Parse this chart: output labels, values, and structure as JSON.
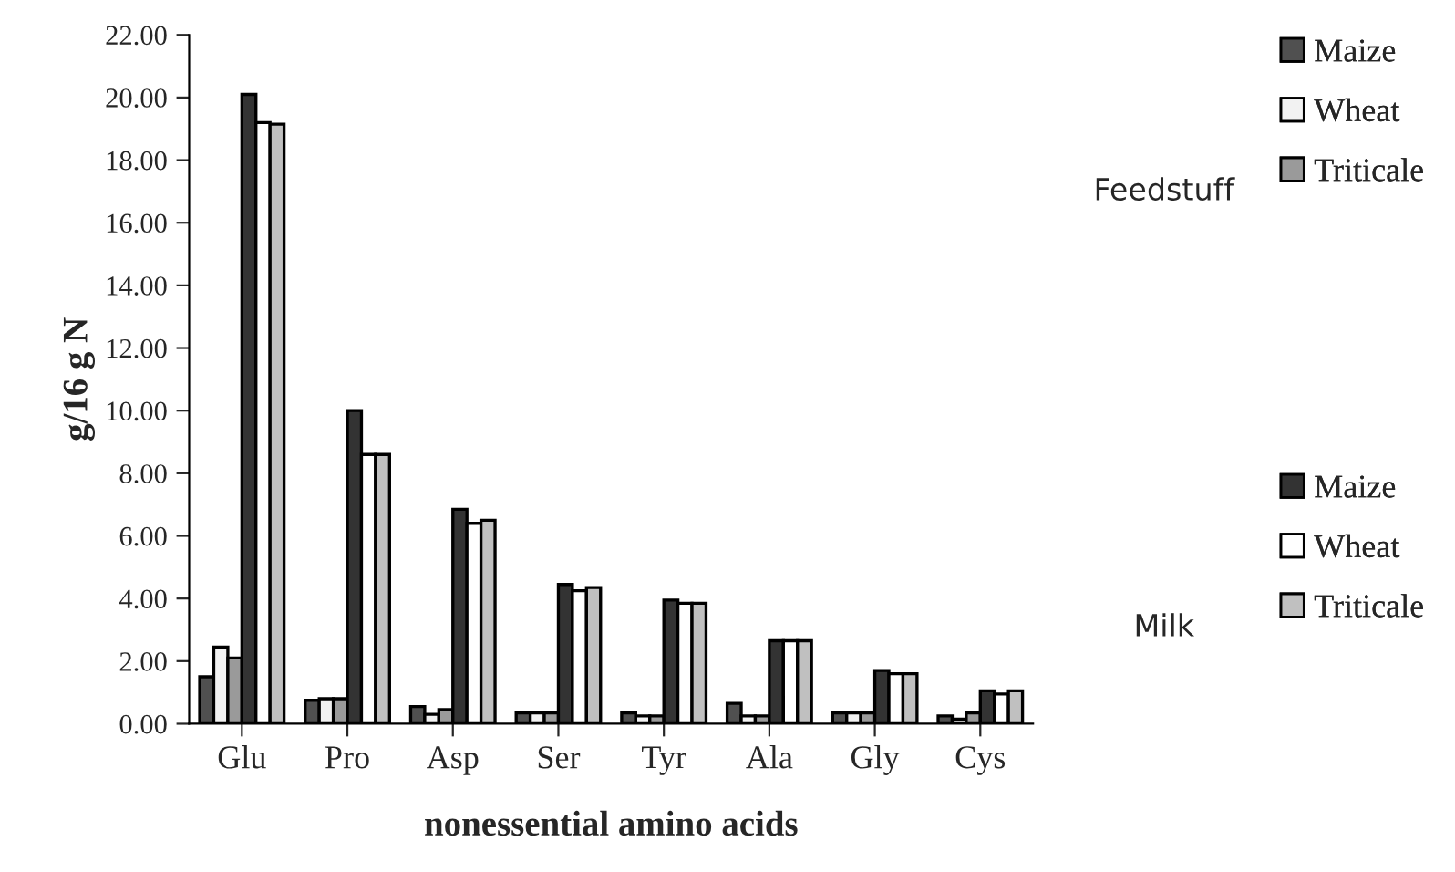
{
  "chart_data": {
    "type": "bar",
    "xlabel": "nonessential amino acids",
    "ylabel": "g/16 g N",
    "categories": [
      "Glu",
      "Pro",
      "Asp",
      "Ser",
      "Tyr",
      "Ala",
      "Gly",
      "Cys"
    ],
    "series": [
      {
        "name": "Maize",
        "color": "#505050",
        "values": [
          1.5,
          0.75,
          0.55,
          0.35,
          0.35,
          0.65,
          0.35,
          0.25
        ]
      },
      {
        "name": "Wheat",
        "color": "#f2f2f2",
        "values": [
          2.45,
          0.8,
          0.3,
          0.35,
          0.25,
          0.25,
          0.35,
          0.15
        ]
      },
      {
        "name": "Triticale",
        "color": "#9a9a9a",
        "values": [
          2.1,
          0.8,
          0.45,
          0.35,
          0.25,
          0.25,
          0.35,
          0.35
        ]
      },
      {
        "name": "Maize",
        "color": "#333333",
        "values": [
          20.1,
          10.0,
          6.85,
          4.45,
          3.95,
          2.65,
          1.7,
          1.05
        ]
      },
      {
        "name": "Wheat",
        "color": "#ffffff",
        "values": [
          19.2,
          8.6,
          6.4,
          4.25,
          3.85,
          2.65,
          1.6,
          0.95
        ]
      },
      {
        "name": "Triticale",
        "color": "#c0c0c0",
        "values": [
          19.15,
          8.6,
          6.5,
          4.35,
          3.85,
          2.65,
          1.6,
          1.05
        ]
      }
    ],
    "annotations": [
      "Feedstuff",
      "Milk"
    ],
    "ylim": [
      0,
      22
    ],
    "yticks": [
      {
        "value": 0,
        "label": "0.00"
      },
      {
        "value": 2,
        "label": "2.00"
      },
      {
        "value": 4,
        "label": "4.00"
      },
      {
        "value": 6,
        "label": "6.00"
      },
      {
        "value": 8,
        "label": "8.00"
      },
      {
        "value": 10,
        "label": "10.00"
      },
      {
        "value": 12,
        "label": "12.00"
      },
      {
        "value": 14,
        "label": "14.00"
      },
      {
        "value": 16,
        "label": "16.00"
      },
      {
        "value": 18,
        "label": "18.00"
      },
      {
        "value": 20,
        "label": "20.00"
      },
      {
        "value": 22,
        "label": "22.00"
      }
    ],
    "grid": false,
    "legend": "right"
  }
}
